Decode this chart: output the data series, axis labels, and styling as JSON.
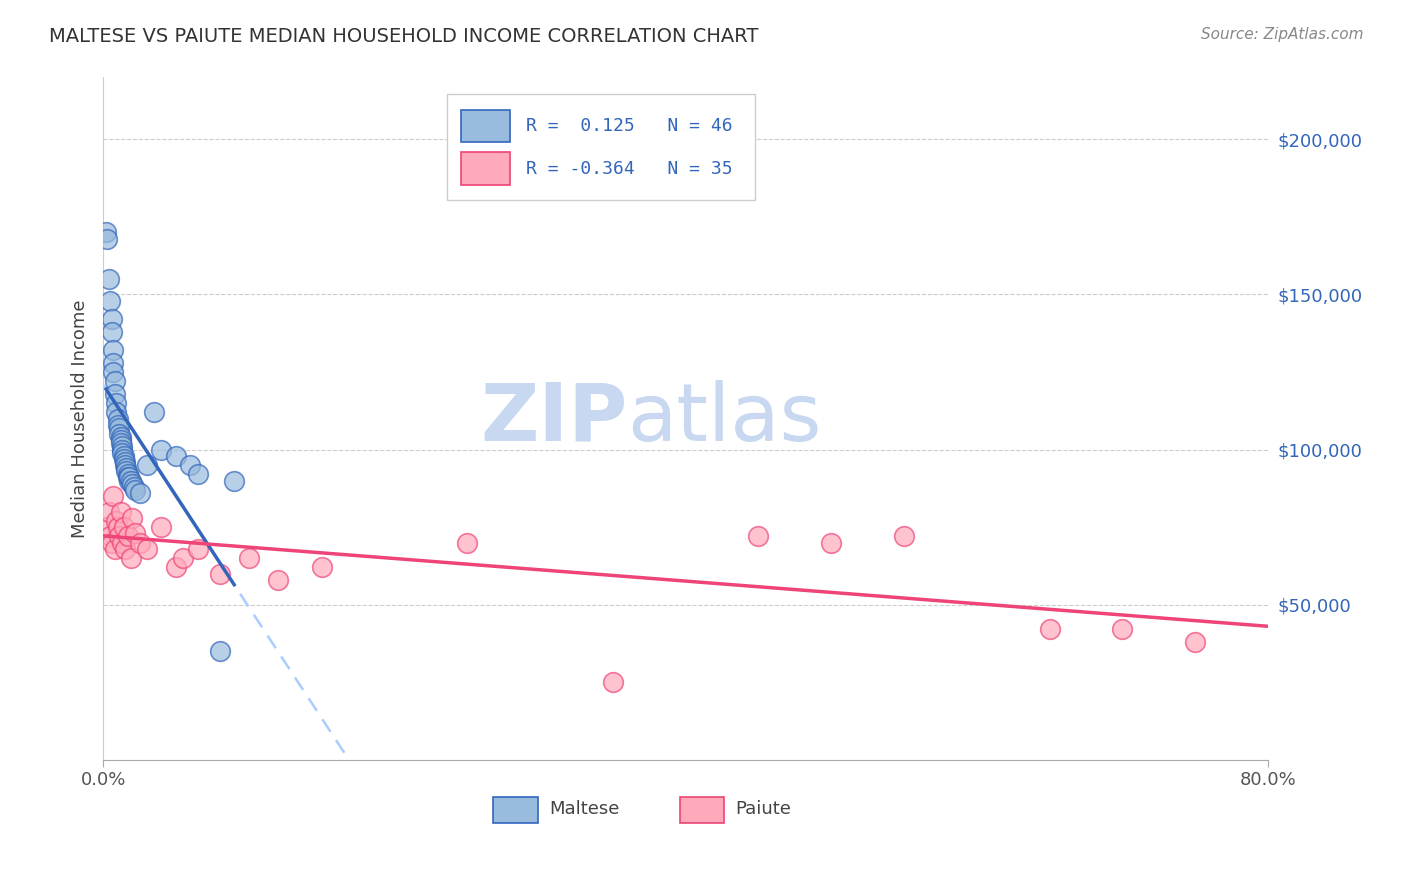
{
  "title": "MALTESE VS PAIUTE MEDIAN HOUSEHOLD INCOME CORRELATION CHART",
  "source": "Source: ZipAtlas.com",
  "ylabel": "Median Household Income",
  "yticks": [
    0,
    50000,
    100000,
    150000,
    200000
  ],
  "ytick_labels": [
    "",
    "$50,000",
    "$100,000",
    "$150,000",
    "$200,000"
  ],
  "xlim": [
    0.0,
    0.8
  ],
  "ylim": [
    0,
    220000
  ],
  "maltese_color": "#99BBDD",
  "paiute_color": "#FFAABB",
  "maltese_trend_color": "#3366BB",
  "paiute_trend_color": "#EE4477",
  "dash_color": "#AACCFF",
  "watermark_zip": "ZIP",
  "watermark_atlas": "atlas",
  "watermark_color": "#C8D8F0",
  "maltese_x": [
    0.002,
    0.003,
    0.004,
    0.005,
    0.006,
    0.006,
    0.007,
    0.007,
    0.007,
    0.008,
    0.008,
    0.009,
    0.009,
    0.01,
    0.01,
    0.011,
    0.011,
    0.012,
    0.012,
    0.012,
    0.013,
    0.013,
    0.013,
    0.014,
    0.014,
    0.015,
    0.015,
    0.016,
    0.016,
    0.017,
    0.017,
    0.018,
    0.018,
    0.019,
    0.02,
    0.021,
    0.022,
    0.025,
    0.03,
    0.035,
    0.04,
    0.05,
    0.06,
    0.065,
    0.08,
    0.09
  ],
  "maltese_y": [
    170000,
    168000,
    155000,
    148000,
    142000,
    138000,
    132000,
    128000,
    125000,
    122000,
    118000,
    115000,
    112000,
    110000,
    108000,
    107000,
    105000,
    104000,
    103000,
    102000,
    101000,
    100000,
    99000,
    98000,
    97000,
    96000,
    95000,
    94000,
    93000,
    92000,
    91000,
    90000,
    91000,
    90000,
    89000,
    88000,
    87000,
    86000,
    95000,
    112000,
    100000,
    98000,
    95000,
    92000,
    35000,
    90000
  ],
  "paiute_x": [
    0.003,
    0.004,
    0.005,
    0.006,
    0.007,
    0.008,
    0.009,
    0.01,
    0.011,
    0.012,
    0.013,
    0.014,
    0.015,
    0.017,
    0.019,
    0.02,
    0.022,
    0.025,
    0.03,
    0.04,
    0.05,
    0.055,
    0.065,
    0.08,
    0.1,
    0.12,
    0.15,
    0.25,
    0.35,
    0.45,
    0.5,
    0.55,
    0.65,
    0.7,
    0.75
  ],
  "paiute_y": [
    75000,
    80000,
    72000,
    70000,
    85000,
    68000,
    77000,
    75000,
    72000,
    80000,
    70000,
    75000,
    68000,
    72000,
    65000,
    78000,
    73000,
    70000,
    68000,
    75000,
    62000,
    65000,
    68000,
    60000,
    65000,
    58000,
    62000,
    70000,
    25000,
    72000,
    70000,
    72000,
    42000,
    42000,
    38000
  ]
}
